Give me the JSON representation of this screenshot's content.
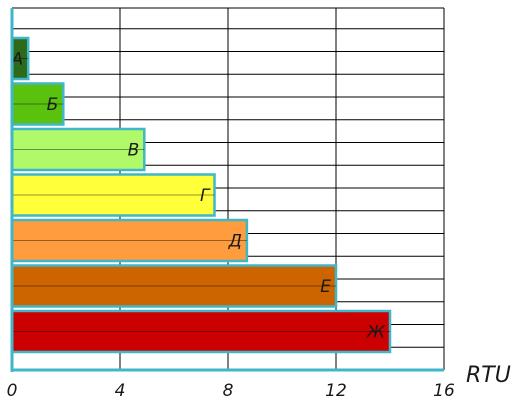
{
  "chart_data": {
    "type": "bar",
    "orientation": "horizontal",
    "categories": [
      "А",
      "Б",
      "В",
      "Г",
      "Д",
      "Е",
      "Ж"
    ],
    "values": [
      0.6,
      1.9,
      4.9,
      7.5,
      8.7,
      12.0,
      14.0
    ],
    "colors": [
      "#2d6a1a",
      "#5ac10e",
      "#b0fa6a",
      "#ffff3a",
      "#ff9c3e",
      "#cc6400",
      "#cc0000"
    ],
    "edge_color": "#3fb7c8",
    "xlabel": "RTU",
    "xlim": [
      0,
      16
    ],
    "x_ticks": [
      0,
      4,
      8,
      12,
      16
    ],
    "grid": true
  }
}
